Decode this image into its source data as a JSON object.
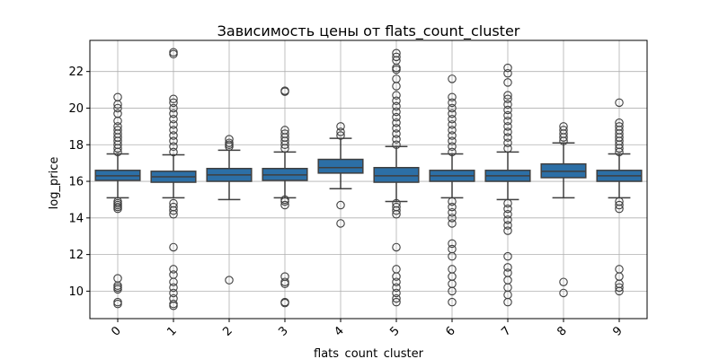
{
  "chart_data": {
    "type": "box",
    "title": "Зависимость цены от flats_count_cluster",
    "xlabel": "flats_count_cluster",
    "ylabel": "log_price",
    "categories": [
      "0",
      "1",
      "2",
      "3",
      "4",
      "5",
      "6",
      "7",
      "8",
      "9"
    ],
    "ylim": [
      8.5,
      23.7
    ],
    "yticks": [
      10,
      12,
      14,
      16,
      18,
      20,
      22
    ],
    "grid": true,
    "box_color": "#2c6fa6",
    "boxes": [
      {
        "category": "0",
        "whisker_low": 15.1,
        "q1": 16.05,
        "median": 16.3,
        "q3": 16.6,
        "whisker_high": 17.5,
        "outliers_low": [
          14.5,
          14.6,
          14.7,
          14.8,
          14.9,
          10.7,
          10.3,
          10.2,
          10.1,
          9.4,
          9.3
        ],
        "outliers_high": [
          17.6,
          17.8,
          18.0,
          18.2,
          18.4,
          18.6,
          18.8,
          19.0,
          19.3,
          19.7,
          20.0,
          20.2,
          20.6
        ]
      },
      {
        "category": "1",
        "whisker_low": 15.1,
        "q1": 15.95,
        "median": 16.25,
        "q3": 16.55,
        "whisker_high": 17.45,
        "outliers_low": [
          14.2,
          14.4,
          14.6,
          14.8,
          12.4,
          11.2,
          10.9,
          10.5,
          10.2,
          9.9,
          9.6,
          9.3,
          9.2
        ],
        "outliers_high": [
          17.6,
          17.9,
          18.2,
          18.5,
          18.8,
          19.1,
          19.4,
          19.7,
          20.0,
          20.3,
          20.5,
          22.95,
          23.05
        ]
      },
      {
        "category": "2",
        "whisker_low": 15.0,
        "q1": 16.0,
        "median": 16.35,
        "q3": 16.7,
        "whisker_high": 17.7,
        "outliers_low": [
          10.6
        ],
        "outliers_high": [
          17.9,
          18.0,
          18.1,
          18.3
        ]
      },
      {
        "category": "3",
        "whisker_low": 15.1,
        "q1": 16.05,
        "median": 16.35,
        "q3": 16.7,
        "whisker_high": 17.6,
        "outliers_low": [
          14.7,
          14.9,
          15.0,
          10.8,
          10.5,
          10.4,
          9.4,
          9.35
        ],
        "outliers_high": [
          17.8,
          18.0,
          18.2,
          18.4,
          18.6,
          18.8,
          20.9,
          20.95
        ]
      },
      {
        "category": "4",
        "whisker_low": 15.6,
        "q1": 16.45,
        "median": 16.75,
        "q3": 17.2,
        "whisker_high": 18.35,
        "outliers_low": [
          14.7,
          13.7
        ],
        "outliers_high": [
          18.5,
          18.7,
          19.0
        ]
      },
      {
        "category": "5",
        "whisker_low": 14.9,
        "q1": 15.95,
        "median": 16.3,
        "q3": 16.75,
        "whisker_high": 17.9,
        "outliers_low": [
          14.2,
          14.4,
          14.6,
          14.8,
          12.4,
          11.2,
          10.8,
          10.5,
          10.2,
          9.9,
          9.6,
          9.4
        ],
        "outliers_high": [
          18.0,
          18.3,
          18.6,
          18.9,
          19.2,
          19.5,
          19.8,
          20.1,
          20.4,
          20.7,
          21.2,
          21.6,
          22.1,
          22.2,
          22.6,
          22.8,
          23.0
        ]
      },
      {
        "category": "6",
        "whisker_low": 15.1,
        "q1": 16.0,
        "median": 16.3,
        "q3": 16.6,
        "whisker_high": 17.5,
        "outliers_low": [
          13.7,
          14.0,
          14.3,
          14.6,
          14.9,
          12.6,
          12.3,
          11.9,
          11.2,
          10.8,
          10.4,
          10.0,
          9.4
        ],
        "outliers_high": [
          17.6,
          17.9,
          18.2,
          18.5,
          18.8,
          19.1,
          19.4,
          19.7,
          20.0,
          20.3,
          20.6,
          21.6
        ]
      },
      {
        "category": "7",
        "whisker_low": 15.0,
        "q1": 16.0,
        "median": 16.3,
        "q3": 16.6,
        "whisker_high": 17.6,
        "outliers_low": [
          13.3,
          13.6,
          13.9,
          14.2,
          14.5,
          14.8,
          11.9,
          11.3,
          11.0,
          10.6,
          10.2,
          9.8,
          9.4
        ],
        "outliers_high": [
          17.8,
          18.1,
          18.4,
          18.7,
          19.0,
          19.3,
          19.6,
          19.9,
          20.2,
          20.5,
          20.7,
          21.4,
          21.9,
          22.2
        ]
      },
      {
        "category": "8",
        "whisker_low": 15.1,
        "q1": 16.2,
        "median": 16.55,
        "q3": 16.95,
        "whisker_high": 18.1,
        "outliers_low": [
          10.5,
          9.9
        ],
        "outliers_high": [
          18.2,
          18.4,
          18.6,
          18.8,
          19.0
        ]
      },
      {
        "category": "9",
        "whisker_low": 15.1,
        "q1": 16.0,
        "median": 16.3,
        "q3": 16.6,
        "whisker_high": 17.5,
        "outliers_low": [
          14.5,
          14.7,
          14.9,
          11.2,
          10.8,
          10.4,
          10.2,
          10.0
        ],
        "outliers_high": [
          17.6,
          17.8,
          18.0,
          18.2,
          18.4,
          18.6,
          18.8,
          19.0,
          19.2,
          20.3
        ]
      }
    ]
  }
}
